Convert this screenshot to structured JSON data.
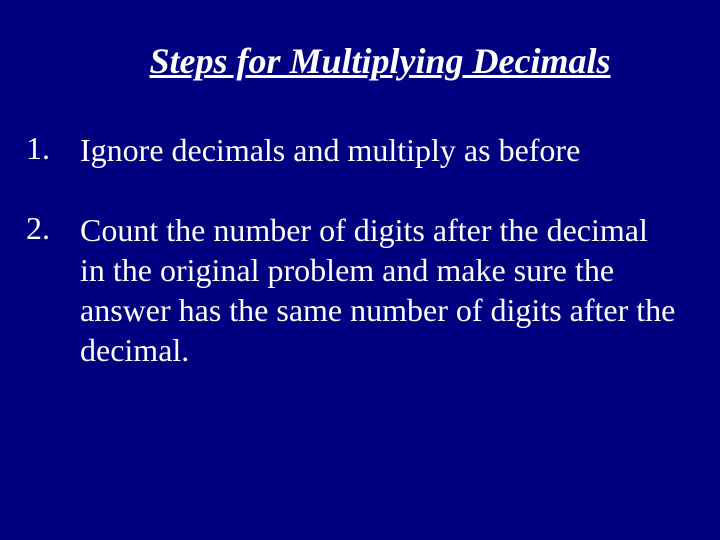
{
  "background_color": "#000080",
  "text_color": "#ffffff",
  "font_family": "Times New Roman",
  "title": {
    "text": "Steps for Multiplying Decimals",
    "font_size": 36,
    "italic": true,
    "bold": true,
    "underline": true
  },
  "steps": [
    {
      "number": "1.",
      "text": "Ignore decimals and multiply as before"
    },
    {
      "number": "2.",
      "text": "Count the number of digits after the decimal in the original problem and make sure the answer has the same number of digits after the decimal."
    }
  ]
}
